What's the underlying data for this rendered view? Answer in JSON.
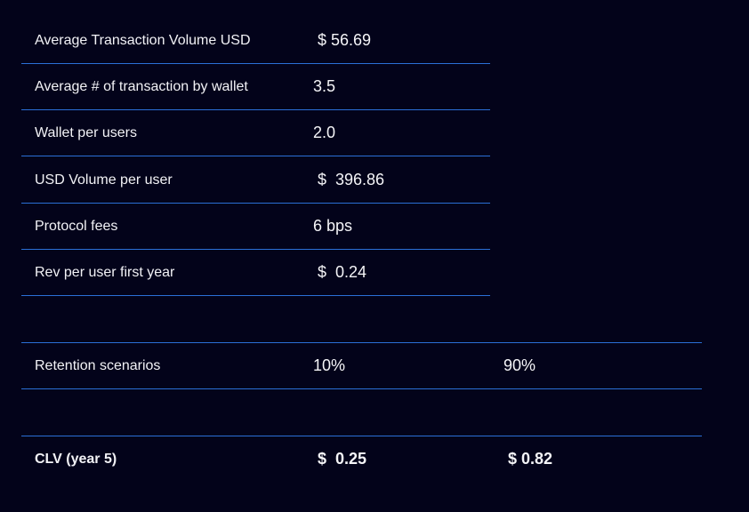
{
  "metrics": [
    {
      "label": "Average Transaction Volume USD",
      "value": "$ 56.69"
    },
    {
      "label": "Average # of transaction by wallet",
      "value": "3.5"
    },
    {
      "label": "Wallet per users",
      "value": "2.0"
    },
    {
      "label": "USD Volume per user",
      "value": "$  396.86"
    },
    {
      "label": "Protocol fees",
      "value": "6 bps"
    },
    {
      "label": "Rev per user first year",
      "value": "$  0.24"
    }
  ],
  "retention": {
    "label": "Retention scenarios",
    "low": "10%",
    "high": "90%"
  },
  "clv": {
    "label": "CLV (year 5)",
    "low": "$  0.25",
    "high": "$ 0.82"
  }
}
